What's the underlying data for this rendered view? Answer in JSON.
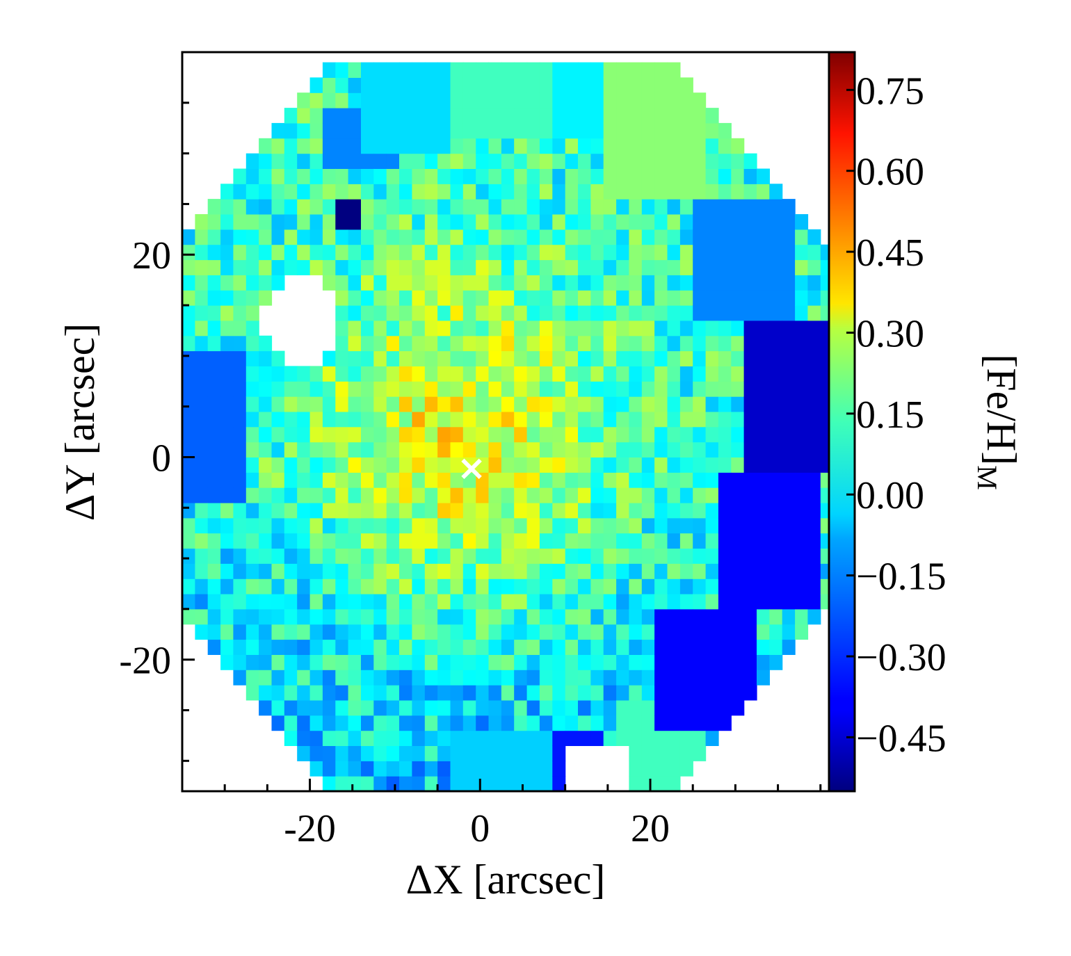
{
  "chart_data": {
    "type": "heatmap",
    "title": "",
    "xlabel": "ΔX [arcsec]",
    "ylabel": "ΔY [arcsec]",
    "xlim": [
      -35,
      41
    ],
    "ylim": [
      -33,
      40
    ],
    "x_ticks": [
      {
        "value": -20,
        "label": "-20"
      },
      {
        "value": 0,
        "label": "0"
      },
      {
        "value": 20,
        "label": "20"
      }
    ],
    "y_ticks": [
      {
        "value": 20,
        "label": "20"
      },
      {
        "value": 0,
        "label": "0"
      },
      {
        "value": -20,
        "label": "-20"
      }
    ],
    "colorbar": {
      "label_main": "[Fe/H]",
      "label_sub": "M",
      "colormap": "jet",
      "vmin": -0.55,
      "vmax": 0.82,
      "ticks": [
        {
          "value": 0.75,
          "label": "0.75"
        },
        {
          "value": 0.6,
          "label": "0.60"
        },
        {
          "value": 0.45,
          "label": "0.45"
        },
        {
          "value": 0.3,
          "label": "0.30"
        },
        {
          "value": 0.15,
          "label": "0.15"
        },
        {
          "value": 0.0,
          "label": "0.00"
        },
        {
          "value": -0.15,
          "label": "−0.15"
        },
        {
          "value": -0.3,
          "label": "−0.30"
        },
        {
          "value": -0.45,
          "label": "−0.45"
        }
      ]
    },
    "center_marker": {
      "x": -1,
      "y": -1,
      "symbol": "×",
      "color": "#ffffff"
    },
    "field_shape": "octagonal footprint with masked holes near (-21, 14) and (14, -31)",
    "regions": [
      {
        "name": "top-left-bin",
        "x_range": [
          -14,
          -4
        ],
        "y_range": [
          30,
          39
        ],
        "value": -0.08
      },
      {
        "name": "top-mid-bin",
        "x_range": [
          -4,
          8
        ],
        "y_range": [
          32,
          39
        ],
        "value": 0.05
      },
      {
        "name": "top-mid2-bin",
        "x_range": [
          8,
          15
        ],
        "y_range": [
          32,
          39
        ],
        "value": -0.05
      },
      {
        "name": "top-right-bin",
        "x_range": [
          15,
          27
        ],
        "y_range": [
          26,
          39
        ],
        "value": 0.15
      },
      {
        "name": "upper-left-blue-bin",
        "x_range": [
          -19,
          -10
        ],
        "y_range": [
          28,
          35
        ],
        "value": -0.2
      },
      {
        "name": "dark-blue-spot",
        "x_range": [
          -17,
          -14
        ],
        "y_range": [
          22,
          26
        ],
        "value": -0.55
      },
      {
        "name": "right-upper-bin",
        "x_range": [
          25,
          37
        ],
        "y_range": [
          13,
          26
        ],
        "value": -0.2
      },
      {
        "name": "right-mid-bin",
        "x_range": [
          31,
          41
        ],
        "y_range": [
          -1,
          13
        ],
        "value": -0.45
      },
      {
        "name": "right-lower-bin",
        "x_range": [
          28,
          40
        ],
        "y_range": [
          -15,
          -1
        ],
        "value": -0.38
      },
      {
        "name": "lower-right-bin",
        "x_range": [
          20,
          32
        ],
        "y_range": [
          -27,
          -15
        ],
        "value": -0.38
      },
      {
        "name": "bottom-right-bin",
        "x_range": [
          16,
          27
        ],
        "y_range": [
          -33,
          -24
        ],
        "value": 0.05
      },
      {
        "name": "bottom-mid-bin",
        "x_range": [
          -4,
          8
        ],
        "y_range": [
          -33,
          -27
        ],
        "value": -0.1
      },
      {
        "name": "bottom-mid-blue-bin",
        "x_range": [
          8,
          14
        ],
        "y_range": [
          -33,
          -27
        ],
        "value": -0.35
      },
      {
        "name": "left-edge-bin",
        "x_range": [
          -35,
          -28
        ],
        "y_range": [
          -4,
          10
        ],
        "value": -0.25
      },
      {
        "name": "central-peak",
        "x_range": [
          -8,
          6
        ],
        "y_range": [
          -6,
          6
        ],
        "value": 0.3
      }
    ]
  }
}
